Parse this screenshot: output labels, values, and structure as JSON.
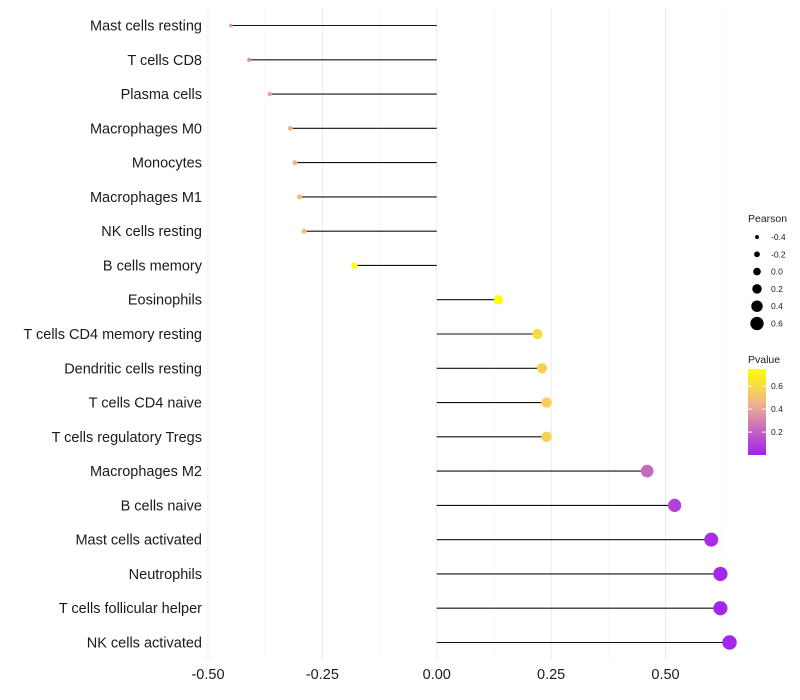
{
  "chart_data": {
    "type": "lollipop",
    "title": "",
    "xlabel": "",
    "ylabel": "",
    "xlim": [
      -0.5,
      0.7
    ],
    "x_ticks": [
      -0.5,
      -0.25,
      0.0,
      0.25,
      0.5
    ],
    "x_tick_labels": [
      "-0.50",
      "-0.25",
      "0.00",
      "0.25",
      "0.50"
    ],
    "grid": true,
    "categories": [
      "Mast cells resting",
      "T cells CD8",
      "Plasma cells",
      "Macrophages M0",
      "Monocytes",
      "Macrophages M1",
      "NK cells resting",
      "B cells memory",
      "Eosinophils",
      "T cells CD4 memory resting",
      "Dendritic cells resting",
      "T cells CD4 naive",
      "T cells regulatory  Tregs ",
      "Macrophages M2",
      "B cells naive",
      "Mast cells activated",
      "Neutrophils",
      "T cells follicular helper",
      "NK cells activated"
    ],
    "pearson": [
      -0.45,
      -0.41,
      -0.365,
      -0.32,
      -0.31,
      -0.3,
      -0.29,
      -0.18,
      0.135,
      0.22,
      0.23,
      0.24,
      0.24,
      0.46,
      0.52,
      0.6,
      0.62,
      0.62,
      0.64
    ],
    "pvalue": [
      0.35,
      0.33,
      0.4,
      0.45,
      0.46,
      0.48,
      0.5,
      0.74,
      0.74,
      0.6,
      0.57,
      0.56,
      0.56,
      0.22,
      0.1,
      0.04,
      0.02,
      0.02,
      0.02
    ],
    "legend": {
      "size_title": "Pearson",
      "size_breaks": [
        -0.4,
        -0.2,
        0.0,
        0.2,
        0.4,
        0.6
      ],
      "size_labels": [
        "-0.4",
        "-0.2",
        "0.0",
        "0.2",
        "0.4",
        "0.6"
      ],
      "color_title": "Pvalue",
      "color_breaks": [
        0.2,
        0.4,
        0.6
      ],
      "color_labels": [
        "0.2",
        "0.4",
        "0.6"
      ],
      "color_range": [
        0.0,
        0.75
      ],
      "color_low": "#a020f0",
      "color_mid": "#f0b48c",
      "color_high": "#ffff00"
    },
    "placement": "legend-right"
  }
}
